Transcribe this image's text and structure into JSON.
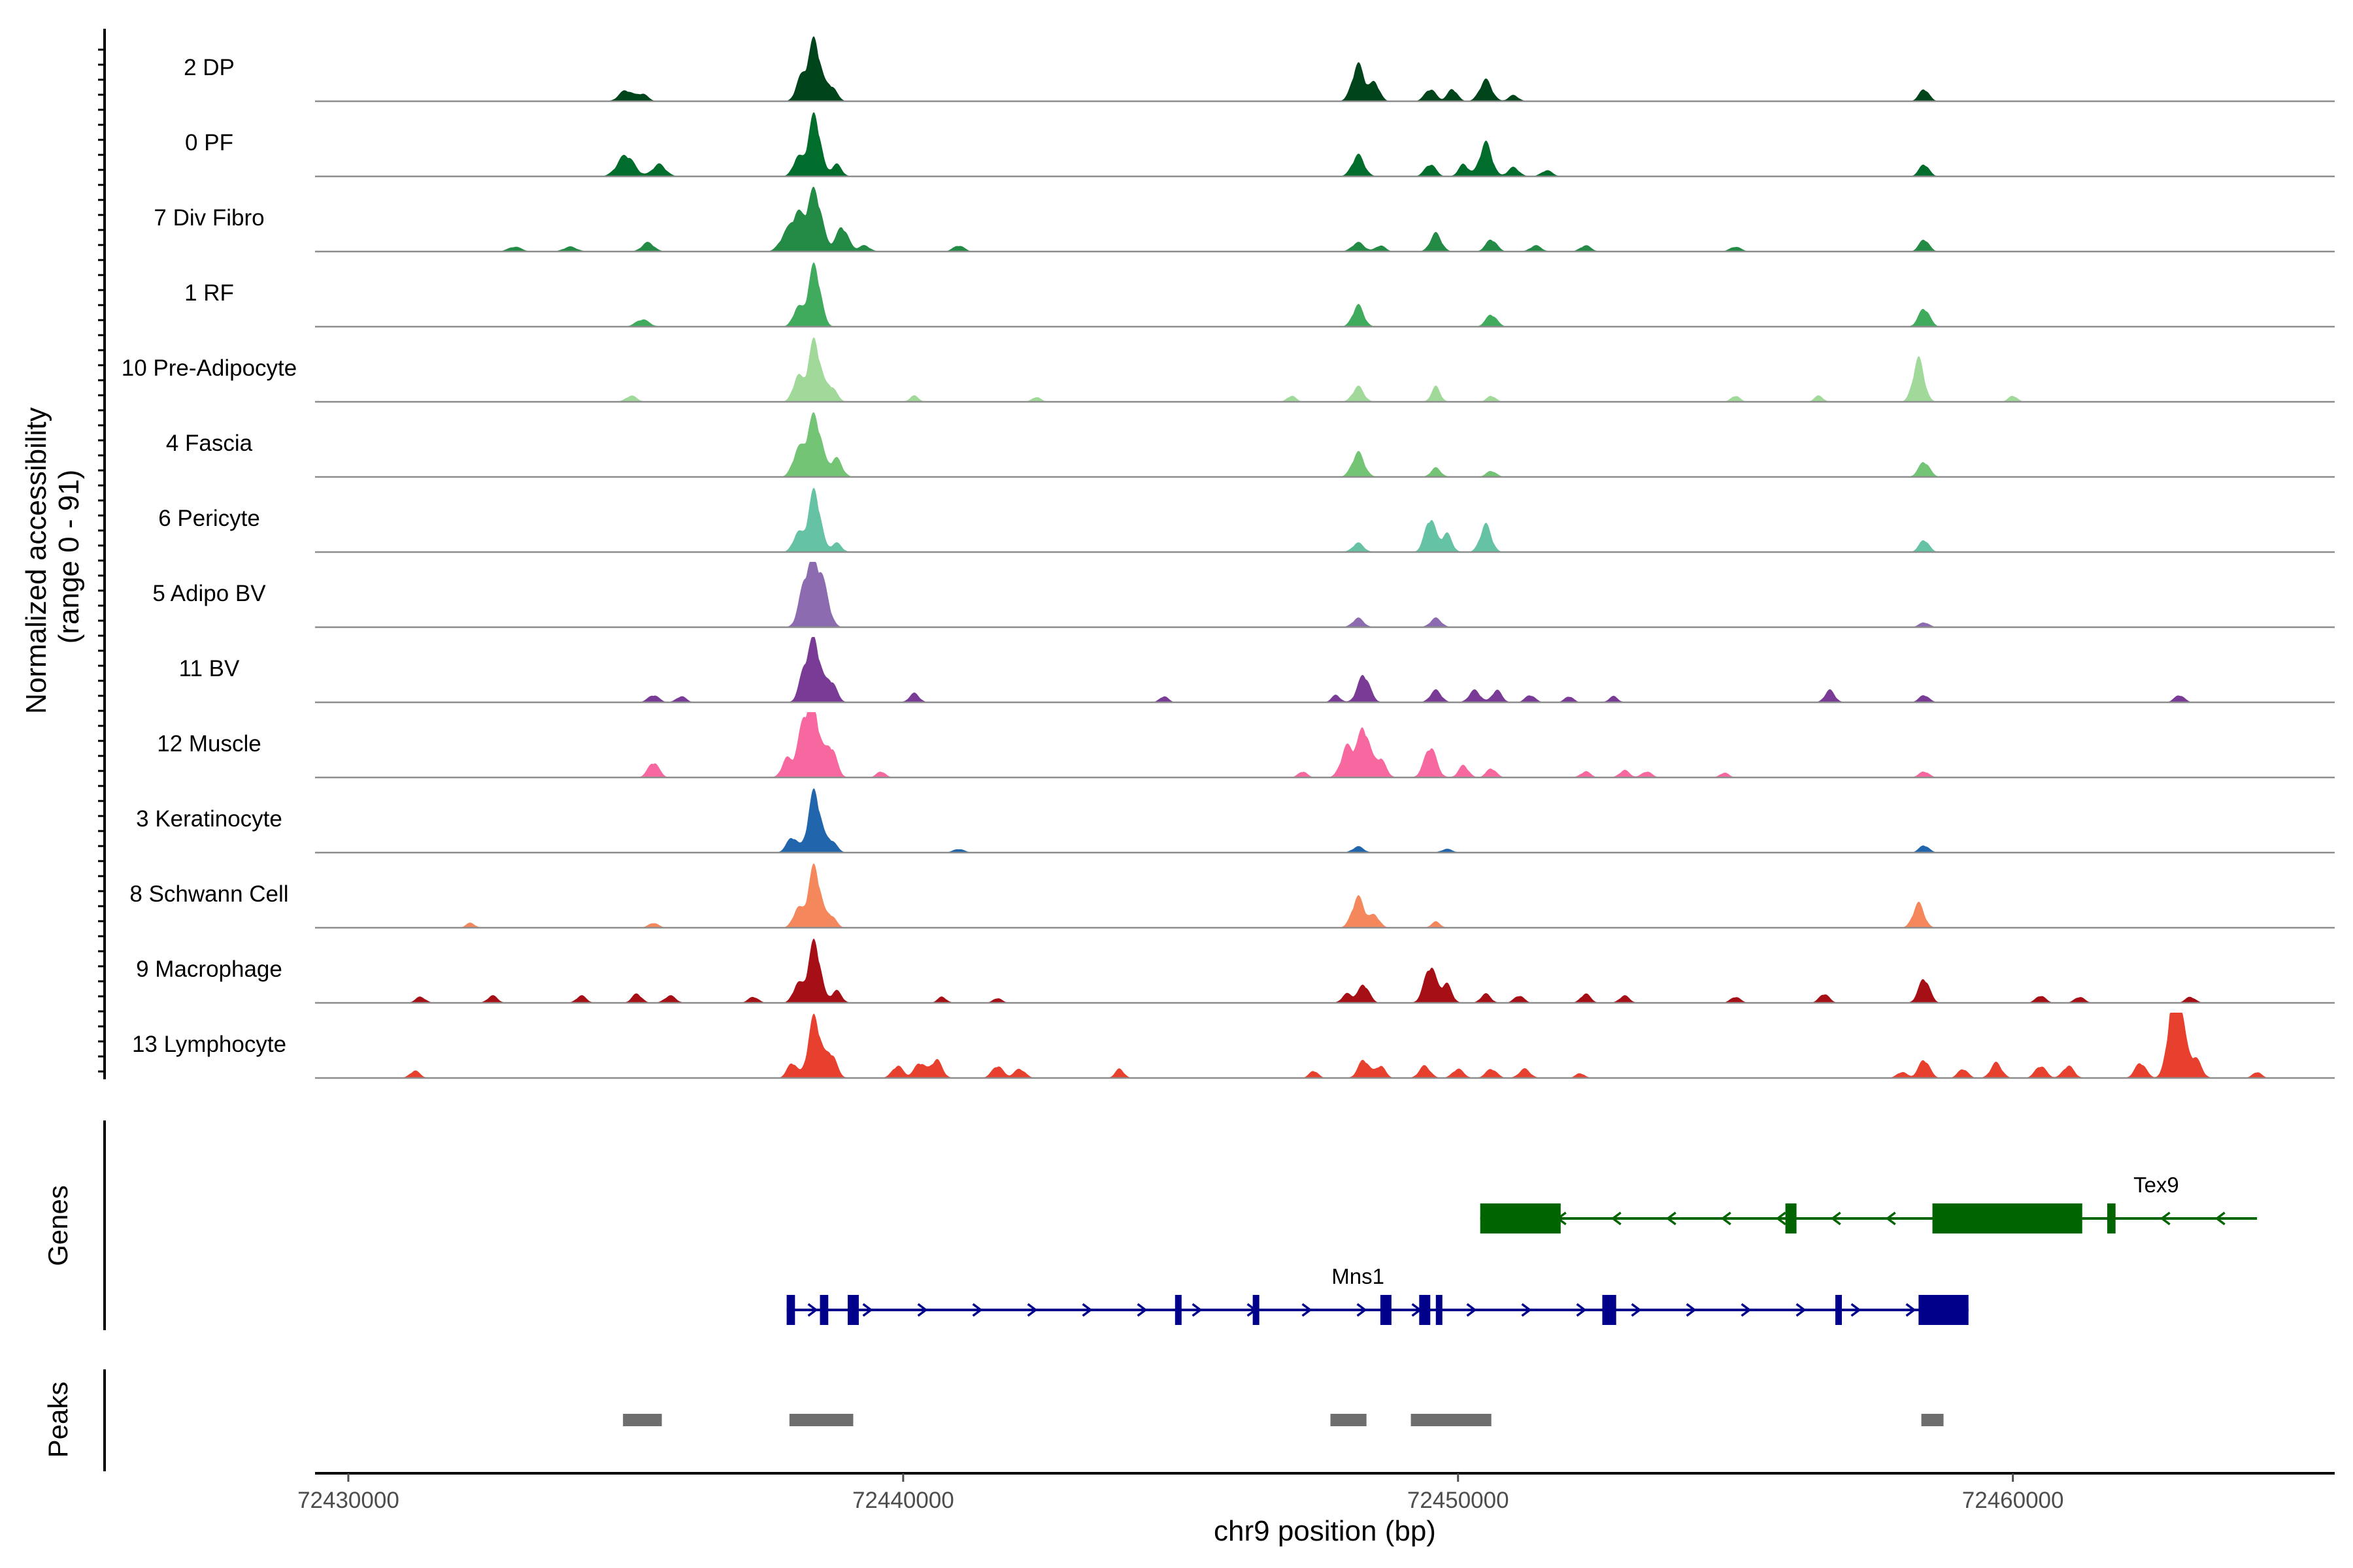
{
  "chart_data": {
    "type": "area",
    "title": "",
    "ylabel_line1": "Normalized accessibility",
    "ylabel_line2": "(range 0 - 91)",
    "xlabel": "chr9 position (bp)",
    "xlim": [
      72429400,
      72465800
    ],
    "xticks": [
      72430000,
      72440000,
      72450000,
      72460000
    ],
    "xtick_labels": [
      "72430000",
      "72440000",
      "72450000",
      "72460000"
    ],
    "y_range": [
      0,
      91
    ],
    "tracks": [
      {
        "name": "2 DP",
        "color": "#00441b",
        "peaks": [
          [
            72435000,
            0.18,
            120
          ],
          [
            72435300,
            0.12,
            100
          ],
          [
            72438400,
            1.0,
            110
          ],
          [
            72438150,
            0.35,
            90
          ],
          [
            72438700,
            0.25,
            100
          ],
          [
            72448200,
            0.6,
            110
          ],
          [
            72448500,
            0.3,
            90
          ],
          [
            72449500,
            0.2,
            100
          ],
          [
            72449900,
            0.2,
            90
          ],
          [
            72450500,
            0.35,
            110
          ],
          [
            72451000,
            0.1,
            90
          ],
          [
            72458400,
            0.2,
            90
          ]
        ]
      },
      {
        "name": "0 PF",
        "color": "#006d2c",
        "peaks": [
          [
            72435000,
            0.35,
            150
          ],
          [
            72435600,
            0.2,
            120
          ],
          [
            72438400,
            1.0,
            110
          ],
          [
            72438100,
            0.3,
            90
          ],
          [
            72438800,
            0.2,
            90
          ],
          [
            72448200,
            0.35,
            110
          ],
          [
            72449500,
            0.2,
            100
          ],
          [
            72450500,
            0.55,
            110
          ],
          [
            72450100,
            0.2,
            90
          ],
          [
            72451000,
            0.15,
            100
          ],
          [
            72451600,
            0.1,
            100
          ],
          [
            72458400,
            0.2,
            90
          ]
        ]
      },
      {
        "name": "7 Div Fibro",
        "color": "#238b45",
        "peaks": [
          [
            72433000,
            0.08,
            120
          ],
          [
            72434000,
            0.08,
            120
          ],
          [
            72435400,
            0.15,
            110
          ],
          [
            72437900,
            0.3,
            120
          ],
          [
            72438400,
            1.0,
            130
          ],
          [
            72438900,
            0.4,
            110
          ],
          [
            72438100,
            0.5,
            100
          ],
          [
            72439300,
            0.1,
            100
          ],
          [
            72441000,
            0.1,
            100
          ],
          [
            72448200,
            0.15,
            110
          ],
          [
            72448600,
            0.1,
            90
          ],
          [
            72449600,
            0.3,
            100
          ],
          [
            72450600,
            0.2,
            100
          ],
          [
            72451400,
            0.1,
            100
          ],
          [
            72452300,
            0.1,
            100
          ],
          [
            72455000,
            0.08,
            100
          ],
          [
            72458400,
            0.2,
            90
          ]
        ]
      },
      {
        "name": "1 RF",
        "color": "#41ab5d",
        "peaks": [
          [
            72435300,
            0.12,
            120
          ],
          [
            72438400,
            1.0,
            110
          ],
          [
            72438100,
            0.3,
            90
          ],
          [
            72448200,
            0.35,
            100
          ],
          [
            72450600,
            0.2,
            100
          ],
          [
            72458400,
            0.3,
            100
          ]
        ]
      },
      {
        "name": "10 Pre-Adipocyte",
        "color": "#a1d99b",
        "peaks": [
          [
            72435100,
            0.1,
            100
          ],
          [
            72438400,
            1.0,
            110
          ],
          [
            72438100,
            0.4,
            90
          ],
          [
            72438700,
            0.25,
            100
          ],
          [
            72440200,
            0.1,
            80
          ],
          [
            72442400,
            0.08,
            80
          ],
          [
            72447000,
            0.1,
            80
          ],
          [
            72448200,
            0.25,
            100
          ],
          [
            72449600,
            0.25,
            80
          ],
          [
            72450600,
            0.1,
            80
          ],
          [
            72455000,
            0.1,
            80
          ],
          [
            72456500,
            0.1,
            80
          ],
          [
            72458300,
            0.7,
            100
          ],
          [
            72460000,
            0.1,
            80
          ]
        ]
      },
      {
        "name": "4 Fascia",
        "color": "#74c476",
        "peaks": [
          [
            72438400,
            1.0,
            130
          ],
          [
            72438100,
            0.4,
            100
          ],
          [
            72438800,
            0.3,
            100
          ],
          [
            72448200,
            0.4,
            110
          ],
          [
            72449600,
            0.15,
            90
          ],
          [
            72450600,
            0.1,
            90
          ],
          [
            72458400,
            0.25,
            100
          ]
        ]
      },
      {
        "name": "6 Pericyte",
        "color": "#66c2a4",
        "peaks": [
          [
            72438400,
            1.0,
            110
          ],
          [
            72438100,
            0.3,
            90
          ],
          [
            72438800,
            0.15,
            90
          ],
          [
            72448200,
            0.15,
            100
          ],
          [
            72449500,
            0.55,
            100
          ],
          [
            72449800,
            0.3,
            90
          ],
          [
            72450500,
            0.45,
            100
          ],
          [
            72458400,
            0.2,
            90
          ]
        ]
      },
      {
        "name": "5 Adipo BV",
        "color": "#8c6bb1",
        "peaks": [
          [
            72438400,
            1.0,
            140
          ],
          [
            72438200,
            0.4,
            100
          ],
          [
            72438600,
            0.3,
            100
          ],
          [
            72448200,
            0.15,
            100
          ],
          [
            72449600,
            0.15,
            100
          ],
          [
            72458400,
            0.08,
            90
          ]
        ]
      },
      {
        "name": "11 BV",
        "color": "#7a3b96",
        "peaks": [
          [
            72435500,
            0.12,
            100
          ],
          [
            72436000,
            0.1,
            90
          ],
          [
            72438400,
            1.0,
            110
          ],
          [
            72438200,
            0.4,
            90
          ],
          [
            72438700,
            0.35,
            100
          ],
          [
            72440200,
            0.15,
            90
          ],
          [
            72444700,
            0.1,
            80
          ],
          [
            72447800,
            0.12,
            80
          ],
          [
            72448300,
            0.45,
            110
          ],
          [
            72449600,
            0.2,
            100
          ],
          [
            72450300,
            0.2,
            100
          ],
          [
            72450700,
            0.2,
            90
          ],
          [
            72451300,
            0.12,
            90
          ],
          [
            72452000,
            0.1,
            80
          ],
          [
            72452800,
            0.1,
            80
          ],
          [
            72456700,
            0.2,
            90
          ],
          [
            72458400,
            0.12,
            90
          ],
          [
            72463000,
            0.12,
            90
          ]
        ]
      },
      {
        "name": "12 Muscle",
        "color": "#f768a1",
        "peaks": [
          [
            72435500,
            0.25,
            100
          ],
          [
            72438200,
            0.8,
            110
          ],
          [
            72438400,
            1.0,
            110
          ],
          [
            72438700,
            0.5,
            100
          ],
          [
            72437900,
            0.3,
            90
          ],
          [
            72439600,
            0.1,
            80
          ],
          [
            72447200,
            0.1,
            80
          ],
          [
            72448000,
            0.5,
            110
          ],
          [
            72448300,
            0.8,
            110
          ],
          [
            72448600,
            0.3,
            100
          ],
          [
            72449500,
            0.5,
            110
          ],
          [
            72450100,
            0.2,
            90
          ],
          [
            72450600,
            0.15,
            90
          ],
          [
            72452300,
            0.1,
            90
          ],
          [
            72453000,
            0.12,
            90
          ],
          [
            72453400,
            0.1,
            90
          ],
          [
            72454800,
            0.08,
            80
          ],
          [
            72458400,
            0.1,
            90
          ]
        ]
      },
      {
        "name": "3 Keratinocyte",
        "color": "#2166ac",
        "peaks": [
          [
            72438400,
            1.0,
            110
          ],
          [
            72438000,
            0.25,
            100
          ],
          [
            72438700,
            0.2,
            100
          ],
          [
            72441000,
            0.06,
            100
          ],
          [
            72448200,
            0.1,
            100
          ],
          [
            72449800,
            0.06,
            100
          ],
          [
            72458400,
            0.12,
            90
          ]
        ]
      },
      {
        "name": "8 Schwann Cell",
        "color": "#f4875b",
        "peaks": [
          [
            72432200,
            0.08,
            80
          ],
          [
            72435500,
            0.08,
            90
          ],
          [
            72438400,
            1.0,
            110
          ],
          [
            72438100,
            0.3,
            90
          ],
          [
            72438700,
            0.2,
            90
          ],
          [
            72448200,
            0.5,
            110
          ],
          [
            72448500,
            0.2,
            90
          ],
          [
            72449600,
            0.1,
            80
          ],
          [
            72458300,
            0.4,
            100
          ]
        ]
      },
      {
        "name": "9 Macrophage",
        "color": "#a50f15",
        "peaks": [
          [
            72431300,
            0.1,
            90
          ],
          [
            72432600,
            0.12,
            90
          ],
          [
            72434200,
            0.12,
            90
          ],
          [
            72435200,
            0.15,
            90
          ],
          [
            72435800,
            0.12,
            100
          ],
          [
            72437300,
            0.1,
            90
          ],
          [
            72438400,
            1.0,
            110
          ],
          [
            72438100,
            0.3,
            90
          ],
          [
            72438800,
            0.2,
            90
          ],
          [
            72440700,
            0.1,
            80
          ],
          [
            72441700,
            0.08,
            80
          ],
          [
            72448000,
            0.15,
            90
          ],
          [
            72448300,
            0.3,
            100
          ],
          [
            72449500,
            0.6,
            110
          ],
          [
            72449800,
            0.3,
            90
          ],
          [
            72450500,
            0.15,
            90
          ],
          [
            72451100,
            0.12,
            90
          ],
          [
            72452300,
            0.15,
            90
          ],
          [
            72453000,
            0.12,
            90
          ],
          [
            72455000,
            0.1,
            90
          ],
          [
            72456600,
            0.15,
            90
          ],
          [
            72458400,
            0.4,
            100
          ],
          [
            72460500,
            0.12,
            90
          ],
          [
            72461200,
            0.1,
            90
          ],
          [
            72463200,
            0.1,
            90
          ]
        ]
      },
      {
        "name": "13 Lymphocyte",
        "color": "#e8402e",
        "peaks": [
          [
            72431200,
            0.12,
            90
          ],
          [
            72438000,
            0.25,
            90
          ],
          [
            72438400,
            1.0,
            110
          ],
          [
            72438700,
            0.4,
            100
          ],
          [
            72439900,
            0.2,
            100
          ],
          [
            72440300,
            0.25,
            100
          ],
          [
            72440600,
            0.3,
            100
          ],
          [
            72441700,
            0.2,
            100
          ],
          [
            72442100,
            0.15,
            100
          ],
          [
            72443900,
            0.15,
            80
          ],
          [
            72447400,
            0.12,
            80
          ],
          [
            72448300,
            0.3,
            100
          ],
          [
            72448600,
            0.2,
            90
          ],
          [
            72449400,
            0.2,
            100
          ],
          [
            72450000,
            0.15,
            100
          ],
          [
            72450600,
            0.15,
            100
          ],
          [
            72451200,
            0.15,
            100
          ],
          [
            72452200,
            0.08,
            80
          ],
          [
            72458000,
            0.1,
            90
          ],
          [
            72458400,
            0.3,
            100
          ],
          [
            72459100,
            0.15,
            90
          ],
          [
            72459700,
            0.25,
            100
          ],
          [
            72460500,
            0.2,
            100
          ],
          [
            72461000,
            0.2,
            100
          ],
          [
            72462300,
            0.25,
            100
          ],
          [
            72462900,
            1.0,
            110
          ],
          [
            72463000,
            0.8,
            120
          ],
          [
            72463300,
            0.3,
            100
          ],
          [
            72464400,
            0.1,
            80
          ]
        ]
      }
    ],
    "genes_label": "Genes",
    "genes": [
      {
        "name": "Tex9",
        "color": "#006400",
        "start": 72450400,
        "end": 72464400,
        "strand": "-",
        "exons": [
          [
            72450400,
            72451850,
            "utr"
          ],
          [
            72455900,
            72456100,
            "cds"
          ],
          [
            72458550,
            72461250,
            "utr"
          ],
          [
            72461700,
            72461850,
            "cds"
          ]
        ]
      },
      {
        "name": "Mns1",
        "color": "#00008b",
        "start": 72437900,
        "end": 72459200,
        "strand": "+",
        "exons": [
          [
            72437900,
            72438050,
            "cds"
          ],
          [
            72438500,
            72438650,
            "cds"
          ],
          [
            72439000,
            72439200,
            "cds"
          ],
          [
            72444900,
            72445000,
            "cds"
          ],
          [
            72446300,
            72446400,
            "cds"
          ],
          [
            72448600,
            72448800,
            "cds"
          ],
          [
            72449300,
            72449500,
            "cds"
          ],
          [
            72449600,
            72449700,
            "cds"
          ],
          [
            72452600,
            72452850,
            "cds"
          ],
          [
            72456800,
            72456900,
            "cds"
          ],
          [
            72458300,
            72459200,
            "utr"
          ]
        ]
      }
    ],
    "peaks_label": "Peaks",
    "peak_regions": [
      [
        72434950,
        72435650
      ],
      [
        72437950,
        72439100
      ],
      [
        72447700,
        72448350
      ],
      [
        72449150,
        72450600
      ],
      [
        72458350,
        72458750
      ]
    ]
  }
}
